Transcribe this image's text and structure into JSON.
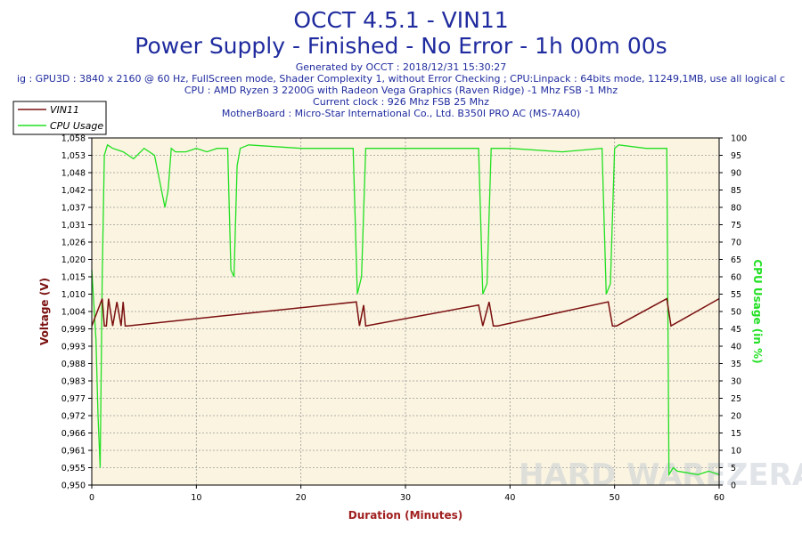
{
  "header": {
    "title": "OCCT 4.5.1 - VIN11",
    "subtitle": "Power Supply - Finished - No Error - 1h 00m 00s",
    "info_lines": [
      "Generated by OCCT : 2018/12/31 15:30:27",
      "ig : GPU3D : 3840 x 2160 @ 60 Hz, FullScreen mode, Shader Complexity 1, without Error Checking ; CPU:Linpack : 64bits mode, 11249,1MB, use all logical c",
      "CPU : AMD Ryzen 3 2200G with Radeon Vega Graphics (Raven Ridge) -1 Mhz FSB -1 Mhz",
      "Current clock : 926 Mhz FSB 25 Mhz",
      "MotherBoard : Micro-Star International Co., Ltd. B350I PRO AC (MS-7A40)"
    ]
  },
  "colors": {
    "title": "#1f2b9e",
    "plot_bg": "#fbf4e1",
    "voltage": "#7b1010",
    "cpu": "#22e022",
    "xlabel": "#a01f1f",
    "grid": "#9a9a9a"
  },
  "watermark": "HARD WAREZERA",
  "chart_data": {
    "type": "line",
    "xlabel": "Duration (Minutes)",
    "ylabel": "Voltage (V)",
    "y2label": "CPU Usage (in %)",
    "xlim": [
      0,
      60
    ],
    "ylim": [
      0.95,
      1.058
    ],
    "y2lim": [
      0,
      100
    ],
    "x_ticks": [
      0,
      10,
      20,
      30,
      40,
      50,
      60
    ],
    "y_ticks": [
      "0,950",
      "0,955",
      "0,961",
      "0,966",
      "0,972",
      "0,977",
      "0,983",
      "0,988",
      "0,993",
      "0,999",
      "1,004",
      "1,010",
      "1,015",
      "1,020",
      "1,026",
      "1,031",
      "1,037",
      "1,042",
      "1,048",
      "1,053",
      "1,058"
    ],
    "y2_ticks": [
      0,
      5,
      10,
      15,
      20,
      25,
      30,
      35,
      40,
      45,
      50,
      55,
      60,
      65,
      70,
      75,
      80,
      85,
      90,
      95,
      100
    ],
    "grid": true,
    "legend_position": "top-left",
    "series": [
      {
        "name": "VIN11",
        "axis": "left",
        "x": [
          0,
          1.0,
          1.2,
          1.4,
          1.6,
          2.0,
          2.4,
          2.8,
          3.0,
          3.2,
          3.4,
          25.3,
          25.6,
          26.0,
          26.2,
          37.0,
          37.4,
          38.0,
          38.4,
          38.8,
          49.4,
          49.8,
          50.2,
          55.0,
          55.4,
          60
        ],
        "y": [
          0.9995,
          1.008,
          0.9995,
          0.9995,
          1.008,
          0.9995,
          1.007,
          0.9995,
          1.007,
          0.9995,
          0.9995,
          1.007,
          0.9995,
          1.006,
          0.9995,
          1.006,
          0.9995,
          1.007,
          0.9995,
          0.9995,
          1.007,
          0.9995,
          0.9995,
          1.008,
          0.9995,
          1.008
        ]
      },
      {
        "name": "CPU Usage",
        "axis": "right",
        "x": [
          0,
          0.4,
          0.6,
          0.8,
          1.0,
          1.2,
          1.4,
          1.5,
          2,
          3,
          4,
          5,
          6,
          7,
          7.3,
          7.6,
          8,
          9,
          10,
          11,
          12,
          13,
          13.3,
          13.6,
          13.9,
          14.2,
          15,
          20,
          25,
          25.4,
          25.8,
          26.2,
          30,
          35,
          37,
          37.4,
          37.8,
          38.2,
          40,
          45,
          48.8,
          49.2,
          49.6,
          50.0,
          50.4,
          53,
          55,
          55.2,
          55.6,
          56,
          58,
          59,
          60
        ],
        "y": [
          62,
          42,
          20,
          5,
          60,
          95,
          97,
          98,
          97,
          96,
          94,
          97,
          95,
          80,
          85,
          97,
          96,
          96,
          97,
          96,
          97,
          97,
          62,
          60,
          92,
          97,
          98,
          97,
          97,
          55,
          60,
          97,
          97,
          97,
          97,
          55,
          58,
          97,
          97,
          96,
          97,
          55,
          58,
          97,
          98,
          97,
          97,
          3,
          5,
          4,
          3,
          4,
          3
        ]
      }
    ]
  }
}
